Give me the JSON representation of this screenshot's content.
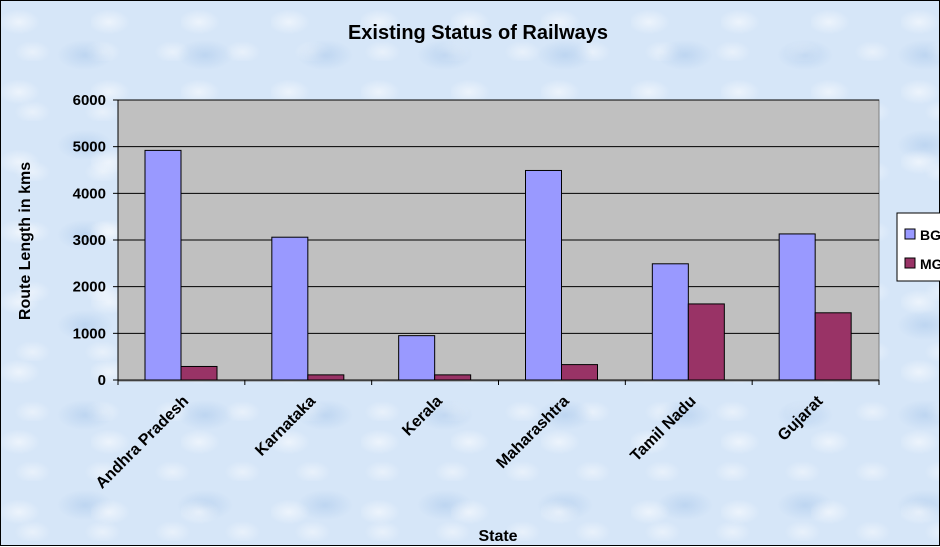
{
  "chart_data": {
    "type": "bar",
    "title": "Existing Status of Railways",
    "xlabel": "State",
    "ylabel": "Route Length in kms",
    "categories": [
      "Andhra Pradesh",
      "Karnataka",
      "Kerala",
      "Maharashtra",
      "Tamil Nadu",
      "Gujarat"
    ],
    "series": [
      {
        "name": "BG",
        "color": "#9999ff",
        "values": [
          4920,
          3060,
          950,
          4490,
          2490,
          3130
        ]
      },
      {
        "name": "MG",
        "color": "#993366",
        "values": [
          290,
          110,
          110,
          330,
          1630,
          1440
        ]
      }
    ],
    "ylim": [
      0,
      6000
    ],
    "yticks": [
      0,
      1000,
      2000,
      3000,
      4000,
      5000,
      6000
    ],
    "ytick_labels": [
      "0",
      "1000",
      "2000",
      "3000",
      "4000",
      "5000",
      "6000"
    ],
    "plot_background": "#c0c0c0",
    "grid": true,
    "legend_position": "right",
    "legend_labels": [
      "BG",
      "MG"
    ]
  }
}
